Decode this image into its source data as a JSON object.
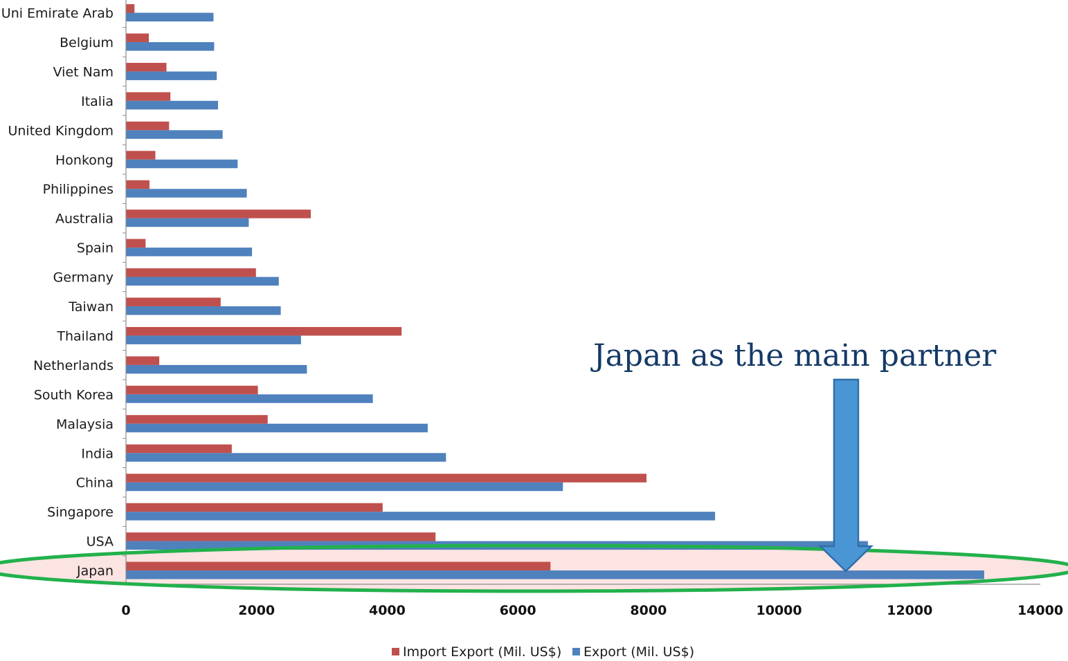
{
  "chart_data": {
    "type": "bar",
    "orientation": "horizontal",
    "categories": [
      "Uni Emirate Arab",
      "Belgium",
      "Viet Nam",
      "Italia",
      "United Kingdom",
      "Honkong",
      "Philippines",
      "Australia",
      "Spain",
      "Germany",
      "Taiwan",
      "Thailand",
      "Netherlands",
      "South Korea",
      "Malaysia",
      "India",
      "China",
      "Singapore",
      "USA",
      "Japan"
    ],
    "series": [
      {
        "name": "Import Export (Mil. US$)",
        "color": "#c0504d",
        "values": [
          130,
          350,
          620,
          680,
          660,
          450,
          360,
          2830,
          300,
          1990,
          1450,
          4220,
          510,
          2020,
          2170,
          1620,
          7970,
          3930,
          4740,
          6500
        ]
      },
      {
        "name": "Export (Mil. US$)",
        "color": "#4f81bd",
        "values": [
          1340,
          1350,
          1390,
          1410,
          1480,
          1710,
          1850,
          1880,
          1930,
          2340,
          2370,
          2680,
          2770,
          3780,
          4620,
          4900,
          6690,
          9020,
          11360,
          13140
        ]
      }
    ],
    "xlim": [
      0,
      14000
    ],
    "ticks": [
      "0",
      "2000",
      "4000",
      "6000",
      "8000",
      "10000",
      "12000",
      "14000"
    ],
    "legend_position": "bottom",
    "annotation": {
      "text": "Japan as the main partner",
      "target": "Japan",
      "arrow_color": "#4a96d4"
    },
    "highlight": {
      "category": "Japan",
      "outline_color": "#22b14c",
      "fill_color": "#fbe4e2"
    }
  }
}
